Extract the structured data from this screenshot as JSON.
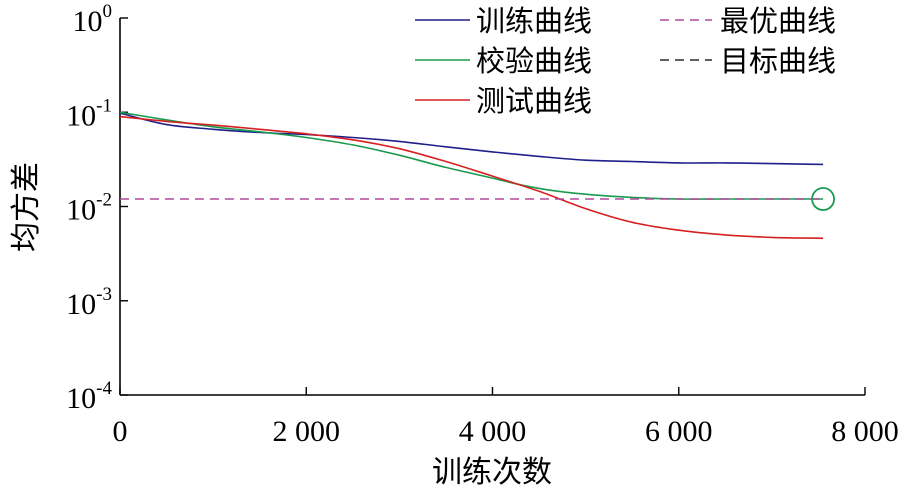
{
  "chart_data": {
    "type": "line",
    "title": "",
    "xlabel": "训练次数",
    "ylabel": "均方差",
    "xlim": [
      0,
      8000
    ],
    "ylim": [
      0.0001,
      1
    ],
    "y_scale": "log",
    "x_ticks": [
      0,
      2000,
      4000,
      6000,
      8000
    ],
    "x_tick_labels": [
      "0",
      "2 000",
      "4 000",
      "6 000",
      "8 000"
    ],
    "y_ticks": [
      {
        "value": 1,
        "base": "10",
        "exp": "0"
      },
      {
        "value": 0.1,
        "base": "10",
        "exp": "-1"
      },
      {
        "value": 0.01,
        "base": "10",
        "exp": "-2"
      },
      {
        "value": 0.001,
        "base": "10",
        "exp": "-3"
      },
      {
        "value": 0.0001,
        "base": "10",
        "exp": "-4"
      }
    ],
    "grid": false,
    "legend_placement": "top-right",
    "series": [
      {
        "name": "训练曲线",
        "color": "#1f1f8a",
        "dash": "solid",
        "x": [
          0,
          500,
          1000,
          1500,
          2000,
          2500,
          3000,
          3500,
          4000,
          4500,
          5000,
          5500,
          6000,
          6500,
          7000,
          7550
        ],
        "y": [
          0.098,
          0.074,
          0.066,
          0.061,
          0.058,
          0.054,
          0.049,
          0.043,
          0.038,
          0.034,
          0.031,
          0.03,
          0.029,
          0.029,
          0.0285,
          0.028
        ]
      },
      {
        "name": "校验曲线",
        "color": "#1a9a50",
        "dash": "solid",
        "x": [
          0,
          500,
          1000,
          1500,
          2000,
          2500,
          3000,
          3500,
          4000,
          4300,
          4600,
          5000,
          5500,
          6000,
          6500,
          7000,
          7550
        ],
        "y": [
          0.1,
          0.083,
          0.07,
          0.062,
          0.054,
          0.045,
          0.035,
          0.026,
          0.02,
          0.017,
          0.015,
          0.0135,
          0.0125,
          0.012,
          0.012,
          0.012,
          0.012
        ]
      },
      {
        "name": "测试曲线",
        "color": "#d62020",
        "dash": "solid",
        "x": [
          0,
          500,
          1000,
          1500,
          2000,
          2500,
          3000,
          3500,
          4000,
          4500,
          5000,
          5500,
          6000,
          6500,
          7000,
          7550
        ],
        "y": [
          0.09,
          0.08,
          0.073,
          0.066,
          0.059,
          0.051,
          0.041,
          0.03,
          0.021,
          0.0145,
          0.0095,
          0.0068,
          0.0056,
          0.005,
          0.0047,
          0.0046
        ]
      },
      {
        "name": "最优曲线",
        "color": "#b04a9a",
        "dash": "dashed",
        "x": [
          0,
          7550
        ],
        "y": [
          0.012,
          0.012
        ]
      },
      {
        "name": "目标曲线",
        "color": "#2a2a2a",
        "dash": "dashed",
        "x": [],
        "y": []
      }
    ],
    "marker": {
      "x": 7550,
      "y": 0.012,
      "shape": "circle",
      "color": "#1a9a50"
    }
  }
}
